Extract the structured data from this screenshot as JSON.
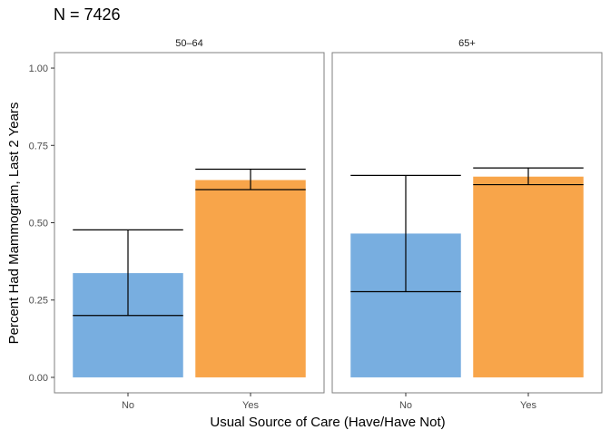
{
  "chart_data": {
    "type": "bar",
    "title": "N = 7426",
    "xlabel": "Usual Source of Care (Have/Have Not)",
    "ylabel": "Percent Had Mammogram, Last 2 Years",
    "ylim": [
      -0.05,
      1.05
    ],
    "yticks": [
      "0.00",
      "0.25",
      "0.50",
      "0.75",
      "1.00"
    ],
    "categories": [
      "No",
      "Yes"
    ],
    "colors": {
      "No": "#78aee0",
      "Yes": "#f8a54a"
    },
    "grid": false,
    "legend": "none",
    "panels": [
      {
        "label": "50–64",
        "bars": [
          {
            "category": "No",
            "value": 0.337,
            "ci_low": 0.2,
            "ci_high": 0.477
          },
          {
            "category": "Yes",
            "value": 0.638,
            "ci_low": 0.607,
            "ci_high": 0.673
          }
        ]
      },
      {
        "label": "65+",
        "bars": [
          {
            "category": "No",
            "value": 0.465,
            "ci_low": 0.277,
            "ci_high": 0.653
          },
          {
            "category": "Yes",
            "value": 0.649,
            "ci_low": 0.623,
            "ci_high": 0.677
          }
        ]
      }
    ]
  }
}
